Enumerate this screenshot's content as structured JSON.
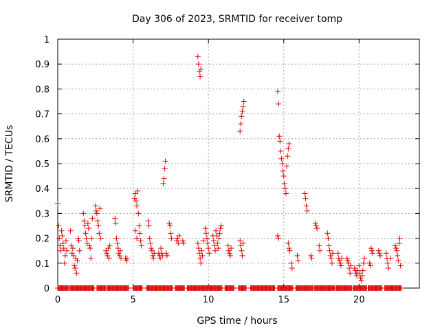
{
  "chart_data": {
    "type": "scatter",
    "title": "Day 306 of 2023, SRMTID for receiver tomp",
    "xlabel": "GPS time / hours",
    "ylabel": "SRMTID / TECUs",
    "xlim": [
      0,
      24
    ],
    "ylim": [
      0,
      1
    ],
    "xticks": [
      0,
      5,
      10,
      15,
      20
    ],
    "yticks": [
      0,
      0.1,
      0.2,
      0.3,
      0.4,
      0.5,
      0.6,
      0.7,
      0.8,
      0.9,
      1
    ],
    "ytick_labels": [
      "0",
      "0.1",
      "0.2",
      "0.3",
      "0.4",
      "0.5",
      "0.6",
      "0.7",
      "0.8",
      "0.9",
      "1"
    ],
    "grid": true,
    "marker": "+",
    "color": "#dd0000",
    "series": [
      {
        "name": "SRMTID",
        "points": [
          [
            0.0,
            0.34
          ],
          [
            0.05,
            0.25
          ],
          [
            0.1,
            0.2
          ],
          [
            0.15,
            0.17
          ],
          [
            0.2,
            0.15
          ],
          [
            0.25,
            0.23
          ],
          [
            0.3,
            0.21
          ],
          [
            0.35,
            0.18
          ],
          [
            0.4,
            0.16
          ],
          [
            0.45,
            0.1
          ],
          [
            0.5,
            0.13
          ],
          [
            0.55,
            0.19
          ],
          [
            0.6,
            0.15
          ],
          [
            0.85,
            0.23
          ],
          [
            0.9,
            0.17
          ],
          [
            0.95,
            0.14
          ],
          [
            1.0,
            0.16
          ],
          [
            1.05,
            0.13
          ],
          [
            1.1,
            0.09
          ],
          [
            1.15,
            0.08
          ],
          [
            1.2,
            0.12
          ],
          [
            1.25,
            0.06
          ],
          [
            1.3,
            0.11
          ],
          [
            1.35,
            0.2
          ],
          [
            1.4,
            0.19
          ],
          [
            1.45,
            0.15
          ],
          [
            1.7,
            0.3
          ],
          [
            1.75,
            0.27
          ],
          [
            1.8,
            0.25
          ],
          [
            1.85,
            0.22
          ],
          [
            1.9,
            0.2
          ],
          [
            1.95,
            0.18
          ],
          [
            2.0,
            0.26
          ],
          [
            2.05,
            0.24
          ],
          [
            2.1,
            0.17
          ],
          [
            2.15,
            0.16
          ],
          [
            2.2,
            0.12
          ],
          [
            2.25,
            0.2
          ],
          [
            2.3,
            0.28
          ],
          [
            2.5,
            0.33
          ],
          [
            2.55,
            0.31
          ],
          [
            2.6,
            0.3
          ],
          [
            2.65,
            0.27
          ],
          [
            2.7,
            0.25
          ],
          [
            2.75,
            0.22
          ],
          [
            2.8,
            0.32
          ],
          [
            2.85,
            0.2
          ],
          [
            3.2,
            0.15
          ],
          [
            3.25,
            0.14
          ],
          [
            3.3,
            0.13
          ],
          [
            3.35,
            0.16
          ],
          [
            3.4,
            0.12
          ],
          [
            3.45,
            0.17
          ],
          [
            3.8,
            0.28
          ],
          [
            3.85,
            0.26
          ],
          [
            3.9,
            0.2
          ],
          [
            3.95,
            0.18
          ],
          [
            4.0,
            0.16
          ],
          [
            4.05,
            0.14
          ],
          [
            4.1,
            0.13
          ],
          [
            4.15,
            0.15
          ],
          [
            4.2,
            0.12
          ],
          [
            4.5,
            0.12
          ],
          [
            4.55,
            0.11
          ],
          [
            4.6,
            0.12
          ],
          [
            5.1,
            0.36
          ],
          [
            5.15,
            0.38
          ],
          [
            5.2,
            0.35
          ],
          [
            5.25,
            0.33
          ],
          [
            5.3,
            0.39
          ],
          [
            5.35,
            0.3
          ],
          [
            5.4,
            0.25
          ],
          [
            5.45,
            0.22
          ],
          [
            5.5,
            0.19
          ],
          [
            5.55,
            0.17
          ],
          [
            5.15,
            0.23
          ],
          [
            5.25,
            0.2
          ],
          [
            6.0,
            0.27
          ],
          [
            6.05,
            0.25
          ],
          [
            6.1,
            0.2
          ],
          [
            6.15,
            0.18
          ],
          [
            6.2,
            0.16
          ],
          [
            6.25,
            0.15
          ],
          [
            6.3,
            0.13
          ],
          [
            6.35,
            0.12
          ],
          [
            6.4,
            0.14
          ],
          [
            6.7,
            0.14
          ],
          [
            6.75,
            0.13
          ],
          [
            6.8,
            0.12
          ],
          [
            6.85,
            0.16
          ],
          [
            6.9,
            0.14
          ],
          [
            6.95,
            0.13
          ],
          [
            7.0,
            0.42
          ],
          [
            7.05,
            0.44
          ],
          [
            7.1,
            0.48
          ],
          [
            7.15,
            0.51
          ],
          [
            7.2,
            0.14
          ],
          [
            7.25,
            0.13
          ],
          [
            7.4,
            0.26
          ],
          [
            7.45,
            0.25
          ],
          [
            7.5,
            0.22
          ],
          [
            7.55,
            0.2
          ],
          [
            7.9,
            0.19
          ],
          [
            7.95,
            0.2
          ],
          [
            8.0,
            0.18
          ],
          [
            8.05,
            0.21
          ],
          [
            8.3,
            0.19
          ],
          [
            8.35,
            0.18
          ],
          [
            9.3,
            0.93
          ],
          [
            9.35,
            0.9
          ],
          [
            9.4,
            0.87
          ],
          [
            9.45,
            0.85
          ],
          [
            9.5,
            0.88
          ],
          [
            9.3,
            0.18
          ],
          [
            9.35,
            0.16
          ],
          [
            9.4,
            0.14
          ],
          [
            9.45,
            0.12
          ],
          [
            9.5,
            0.1
          ],
          [
            9.55,
            0.15
          ],
          [
            9.6,
            0.13
          ],
          [
            9.65,
            0.19
          ],
          [
            9.8,
            0.24
          ],
          [
            9.85,
            0.22
          ],
          [
            9.9,
            0.2
          ],
          [
            9.95,
            0.18
          ],
          [
            10.0,
            0.16
          ],
          [
            10.05,
            0.14
          ],
          [
            10.3,
            0.21
          ],
          [
            10.35,
            0.19
          ],
          [
            10.4,
            0.17
          ],
          [
            10.45,
            0.15
          ],
          [
            10.5,
            0.23
          ],
          [
            10.55,
            0.21
          ],
          [
            10.6,
            0.18
          ],
          [
            10.65,
            0.16
          ],
          [
            10.7,
            0.2
          ],
          [
            10.75,
            0.22
          ],
          [
            10.8,
            0.24
          ],
          [
            10.85,
            0.25
          ],
          [
            11.3,
            0.17
          ],
          [
            11.35,
            0.15
          ],
          [
            11.4,
            0.14
          ],
          [
            11.45,
            0.13
          ],
          [
            11.5,
            0.16
          ],
          [
            12.1,
            0.63
          ],
          [
            12.15,
            0.66
          ],
          [
            12.2,
            0.69
          ],
          [
            12.25,
            0.71
          ],
          [
            12.3,
            0.73
          ],
          [
            12.35,
            0.75
          ],
          [
            12.1,
            0.19
          ],
          [
            12.15,
            0.17
          ],
          [
            12.2,
            0.15
          ],
          [
            12.25,
            0.13
          ],
          [
            12.3,
            0.18
          ],
          [
            14.6,
            0.79
          ],
          [
            14.65,
            0.74
          ],
          [
            14.7,
            0.61
          ],
          [
            14.75,
            0.59
          ],
          [
            14.8,
            0.55
          ],
          [
            14.85,
            0.52
          ],
          [
            14.9,
            0.5
          ],
          [
            14.95,
            0.47
          ],
          [
            15.0,
            0.45
          ],
          [
            15.05,
            0.42
          ],
          [
            15.1,
            0.4
          ],
          [
            15.15,
            0.38
          ],
          [
            15.2,
            0.49
          ],
          [
            15.25,
            0.53
          ],
          [
            15.3,
            0.56
          ],
          [
            15.35,
            0.58
          ],
          [
            14.6,
            0.21
          ],
          [
            14.65,
            0.2
          ],
          [
            15.3,
            0.18
          ],
          [
            15.35,
            0.16
          ],
          [
            15.4,
            0.15
          ],
          [
            15.5,
            0.1
          ],
          [
            15.55,
            0.08
          ],
          [
            15.9,
            0.13
          ],
          [
            15.95,
            0.11
          ],
          [
            16.4,
            0.38
          ],
          [
            16.45,
            0.36
          ],
          [
            16.5,
            0.33
          ],
          [
            16.55,
            0.31
          ],
          [
            16.8,
            0.13
          ],
          [
            16.85,
            0.12
          ],
          [
            17.1,
            0.26
          ],
          [
            17.15,
            0.25
          ],
          [
            17.2,
            0.24
          ],
          [
            17.35,
            0.17
          ],
          [
            17.4,
            0.15
          ],
          [
            17.9,
            0.22
          ],
          [
            17.95,
            0.2
          ],
          [
            18.0,
            0.17
          ],
          [
            18.05,
            0.15
          ],
          [
            18.1,
            0.13
          ],
          [
            18.15,
            0.12
          ],
          [
            18.2,
            0.1
          ],
          [
            18.25,
            0.14
          ],
          [
            18.6,
            0.14
          ],
          [
            18.65,
            0.12
          ],
          [
            18.7,
            0.11
          ],
          [
            18.75,
            0.1
          ],
          [
            18.8,
            0.09
          ],
          [
            18.85,
            0.12
          ],
          [
            19.2,
            0.12
          ],
          [
            19.25,
            0.11
          ],
          [
            19.3,
            0.1
          ],
          [
            19.35,
            0.08
          ],
          [
            19.4,
            0.06
          ],
          [
            19.45,
            0.09
          ],
          [
            19.7,
            0.08
          ],
          [
            19.75,
            0.07
          ],
          [
            19.8,
            0.06
          ],
          [
            19.85,
            0.05
          ],
          [
            19.9,
            0.07
          ],
          [
            20.0,
            0.09
          ],
          [
            20.05,
            0.06
          ],
          [
            20.1,
            0.04
          ],
          [
            20.15,
            0.03
          ],
          [
            20.2,
            0.05
          ],
          [
            20.25,
            0.07
          ],
          [
            20.3,
            0.1
          ],
          [
            20.35,
            0.12
          ],
          [
            20.7,
            0.1
          ],
          [
            20.75,
            0.09
          ],
          [
            20.8,
            0.16
          ],
          [
            20.85,
            0.15
          ],
          [
            20.9,
            0.14
          ],
          [
            21.3,
            0.15
          ],
          [
            21.35,
            0.14
          ],
          [
            21.4,
            0.13
          ],
          [
            21.8,
            0.14
          ],
          [
            21.85,
            0.12
          ],
          [
            21.9,
            0.1
          ],
          [
            21.95,
            0.08
          ],
          [
            22.1,
            0.12
          ],
          [
            22.4,
            0.17
          ],
          [
            22.45,
            0.16
          ],
          [
            22.5,
            0.15
          ],
          [
            22.55,
            0.13
          ],
          [
            22.6,
            0.11
          ],
          [
            22.65,
            0.18
          ],
          [
            22.7,
            0.2
          ],
          [
            22.75,
            0.09
          ]
        ]
      }
    ],
    "zero_segments": [
      [
        0.0,
        0.7
      ],
      [
        0.8,
        2.4
      ],
      [
        2.6,
        3.2
      ],
      [
        3.3,
        4.7
      ],
      [
        5.0,
        5.6
      ],
      [
        5.9,
        7.6
      ],
      [
        7.8,
        8.4
      ],
      [
        8.6,
        10.9
      ],
      [
        11.1,
        11.7
      ],
      [
        12.0,
        12.5
      ],
      [
        12.8,
        14.4
      ],
      [
        14.6,
        15.6
      ],
      [
        15.8,
        16.9
      ],
      [
        17.0,
        18.4
      ],
      [
        18.5,
        19.5
      ],
      [
        19.6,
        20.5
      ],
      [
        20.6,
        21.5
      ],
      [
        21.7,
        22.8
      ]
    ]
  }
}
